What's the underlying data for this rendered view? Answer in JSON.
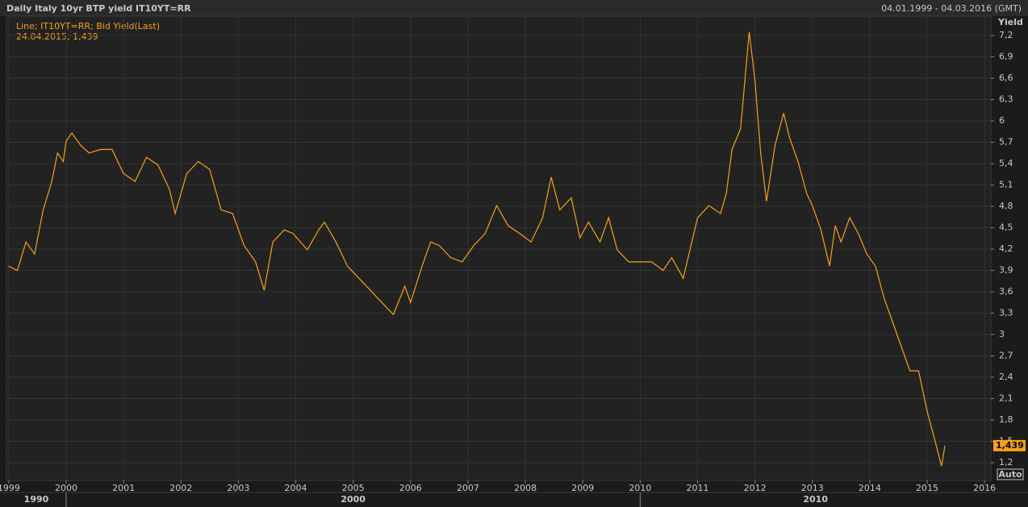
{
  "chart_data": {
    "type": "line",
    "title": "Daily Italy 10yr BTP yield IT10YT=RR",
    "date_range": "04.01.1999 - 04.03.2016 (GMT)",
    "legend_text": "Line; IT10YT=RR; Bid Yield(Last)",
    "annotation": "24.04.2015; 1,439",
    "y_label": "Yield",
    "scale_mode": "Auto",
    "last_value": {
      "value": 1.439,
      "label": "1,439"
    },
    "decade_labels": [
      "1990",
      "2000",
      "2010"
    ],
    "grid": true,
    "x": [
      1999.0,
      1999.15,
      1999.3,
      1999.45,
      1999.6,
      1999.75,
      1999.85,
      1999.95,
      2000.0,
      2000.1,
      2000.25,
      2000.4,
      2000.6,
      2000.8,
      2001.0,
      2001.2,
      2001.4,
      2001.6,
      2001.8,
      2001.9,
      2002.1,
      2002.3,
      2002.5,
      2002.7,
      2002.9,
      2003.1,
      2003.3,
      2003.45,
      2003.6,
      2003.8,
      2003.95,
      2004.2,
      2004.4,
      2004.5,
      2004.7,
      2004.9,
      2005.1,
      2005.3,
      2005.5,
      2005.7,
      2005.9,
      2006.0,
      2006.2,
      2006.35,
      2006.5,
      2006.7,
      2006.9,
      2007.1,
      2007.3,
      2007.5,
      2007.7,
      2007.9,
      2008.1,
      2008.3,
      2008.45,
      2008.6,
      2008.8,
      2008.95,
      2009.1,
      2009.3,
      2009.45,
      2009.6,
      2009.8,
      2010.0,
      2010.2,
      2010.4,
      2010.55,
      2010.75,
      2010.9,
      2011.0,
      2011.2,
      2011.4,
      2011.5,
      2011.6,
      2011.75,
      2011.9,
      2012.0,
      2012.1,
      2012.2,
      2012.35,
      2012.5,
      2012.6,
      2012.75,
      2012.9,
      2013.0,
      2013.15,
      2013.3,
      2013.4,
      2013.5,
      2013.65,
      2013.8,
      2013.95,
      2014.1,
      2014.25,
      2014.4,
      2014.55,
      2014.7,
      2014.85,
      2015.0,
      2015.15,
      2015.25,
      2015.31
    ],
    "series": [
      {
        "name": "IT10YT=RR",
        "color": "#f7a01a",
        "values": [
          3.96,
          3.9,
          4.3,
          4.13,
          4.75,
          5.15,
          5.55,
          5.43,
          5.72,
          5.83,
          5.66,
          5.55,
          5.6,
          5.6,
          5.26,
          5.15,
          5.49,
          5.38,
          5.04,
          4.7,
          5.26,
          5.43,
          5.32,
          4.75,
          4.7,
          4.25,
          4.02,
          3.62,
          4.3,
          4.47,
          4.42,
          4.19,
          4.47,
          4.58,
          4.3,
          3.96,
          3.79,
          3.62,
          3.45,
          3.28,
          3.68,
          3.45,
          3.96,
          4.3,
          4.25,
          4.08,
          4.02,
          4.25,
          4.42,
          4.81,
          4.53,
          4.42,
          4.3,
          4.64,
          5.21,
          4.75,
          4.92,
          4.36,
          4.58,
          4.3,
          4.64,
          4.19,
          4.02,
          4.02,
          4.02,
          3.9,
          4.08,
          3.79,
          4.3,
          4.64,
          4.81,
          4.7,
          4.98,
          5.6,
          5.89,
          7.25,
          6.57,
          5.55,
          4.87,
          5.66,
          6.11,
          5.77,
          5.43,
          4.98,
          4.81,
          4.47,
          3.96,
          4.53,
          4.3,
          4.64,
          4.42,
          4.13,
          3.96,
          3.51,
          3.17,
          2.83,
          2.49,
          2.49,
          1.92,
          1.47,
          1.15,
          1.439
        ]
      }
    ],
    "xlim": [
      1998.96,
      2016.11
    ],
    "xticks": [
      1999,
      2000,
      2001,
      2002,
      2003,
      2004,
      2005,
      2006,
      2007,
      2008,
      2009,
      2010,
      2011,
      2012,
      2013,
      2014,
      2015,
      2016
    ],
    "ylim": [
      0.951,
      7.472
    ],
    "yticks": [
      {
        "value": 1.2,
        "label": "1,2"
      },
      {
        "value": 1.5,
        "label": "1,5"
      },
      {
        "value": 1.8,
        "label": "1,8"
      },
      {
        "value": 2.1,
        "label": "2,1"
      },
      {
        "value": 2.4,
        "label": "2,4"
      },
      {
        "value": 2.7,
        "label": "2,7"
      },
      3,
      {
        "value": 3.3,
        "label": "3,3"
      },
      {
        "value": 3.6,
        "label": "3,6"
      },
      {
        "value": 3.9,
        "label": "3,9"
      },
      {
        "value": 4.2,
        "label": "4,2"
      },
      {
        "value": 4.5,
        "label": "4,5"
      },
      {
        "value": 4.8,
        "label": "4,8"
      },
      {
        "value": 5.1,
        "label": "5,1"
      },
      {
        "value": 5.4,
        "label": "5,4"
      },
      {
        "value": 5.7,
        "label": "5,7"
      },
      6,
      {
        "value": 6.3,
        "label": "6,3"
      },
      {
        "value": 6.6,
        "label": "6,6"
      },
      {
        "value": 6.9,
        "label": "6,9"
      },
      {
        "value": 7.2,
        "label": "7,2"
      }
    ]
  }
}
